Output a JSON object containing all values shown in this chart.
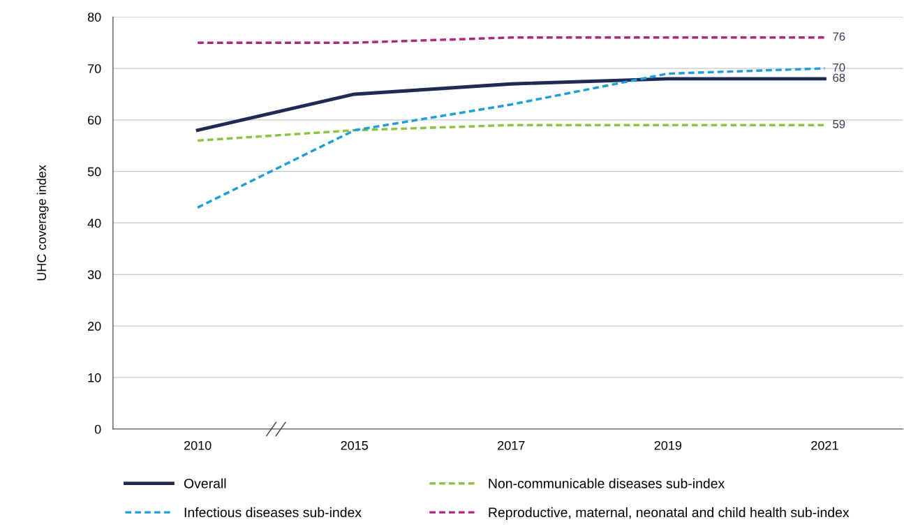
{
  "chart_data": {
    "type": "line",
    "ylabel": "UHC coverage index",
    "categories": [
      "2010",
      "2015",
      "2017",
      "2019",
      "2021"
    ],
    "series": [
      {
        "name": "Overall",
        "color": "#1f2a55",
        "line_style": "solid",
        "values": [
          58,
          65,
          67,
          68,
          68
        ],
        "value_labels": [
          null,
          null,
          null,
          null,
          "68"
        ]
      },
      {
        "name": "Non-communicable diseases sub-index",
        "color": "#8cc43f",
        "line_style": "dashed",
        "values": [
          56,
          58,
          59,
          59,
          59
        ],
        "value_labels": [
          null,
          null,
          null,
          null,
          "59"
        ]
      },
      {
        "name": "Infectious diseases sub-index",
        "color": "#1ba0dc",
        "line_style": "dashed",
        "values": [
          43,
          58,
          63,
          69,
          70
        ],
        "value_labels": [
          null,
          null,
          null,
          null,
          "70"
        ]
      },
      {
        "name": "Reproductive, maternal, neonatal and child health sub-index",
        "color": "#b0267e",
        "line_style": "dashed",
        "values": [
          75,
          75,
          76,
          76,
          76
        ],
        "value_labels": [
          null,
          null,
          null,
          null,
          "76"
        ]
      }
    ],
    "ylim": [
      0,
      80
    ],
    "yticks": [
      0,
      10,
      20,
      30,
      40,
      50,
      60,
      70,
      80
    ],
    "grid": "y",
    "legend": "bottom",
    "marker": "none"
  }
}
